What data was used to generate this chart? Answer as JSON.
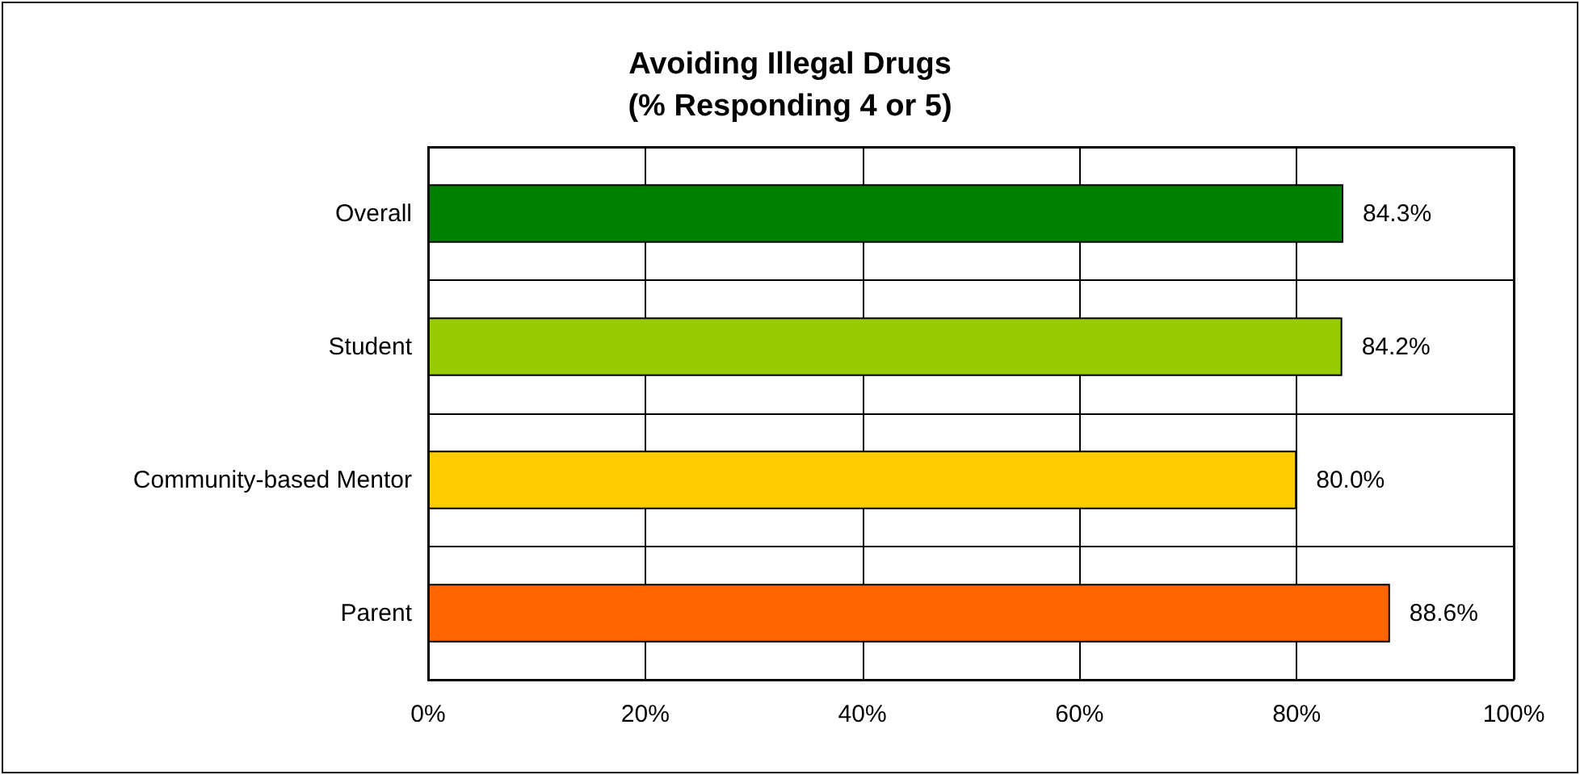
{
  "chart_data": {
    "type": "bar",
    "orientation": "horizontal",
    "title": "Avoiding Illegal Drugs\n(% Responding 4 or 5)",
    "categories": [
      "Overall",
      "Student",
      "Community-based Mentor",
      "Parent"
    ],
    "values": [
      84.3,
      84.2,
      80.0,
      88.6
    ],
    "colors": [
      "#007f00",
      "#99cc00",
      "#ffcc00",
      "#ff6600"
    ],
    "value_labels": [
      "84.3%",
      "84.2%",
      "80.0%",
      "88.6%"
    ],
    "xlim": [
      0,
      100
    ],
    "xticks": [
      {
        "value": 0,
        "label": "0%"
      },
      {
        "value": 20,
        "label": "20%"
      },
      {
        "value": 40,
        "label": "40%"
      },
      {
        "value": 60,
        "label": "60%"
      },
      {
        "value": 80,
        "label": "80%"
      },
      {
        "value": 100,
        "label": "100%"
      }
    ],
    "grid": true
  }
}
